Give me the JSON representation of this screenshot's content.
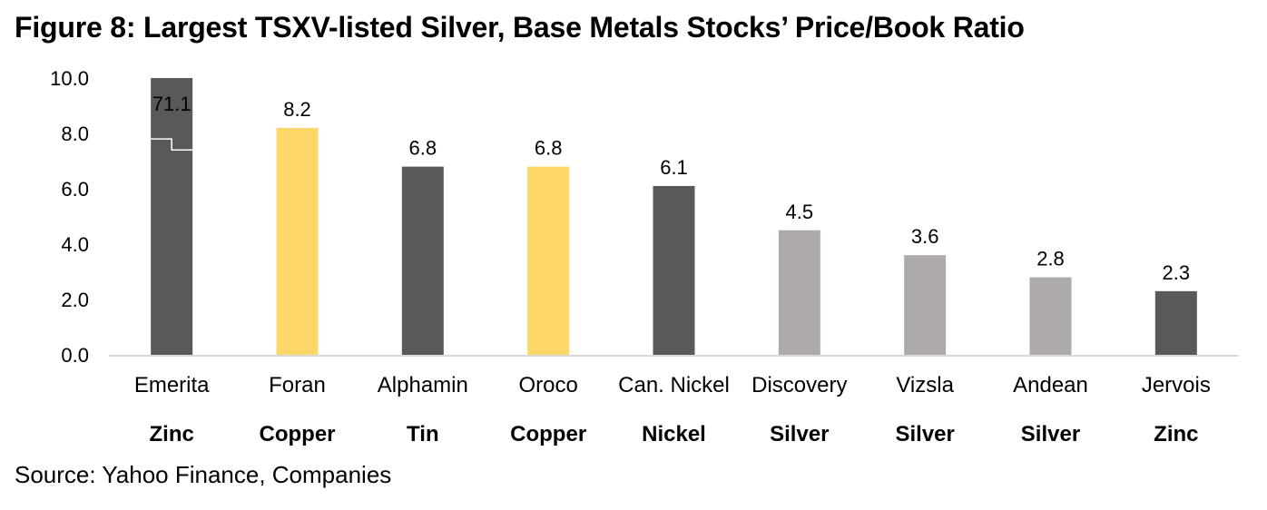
{
  "title": "Figure 8: Largest TSXV-listed Silver, Base Metals Stocks’ Price/Book Ratio",
  "source": "Source: Yahoo Finance, Companies",
  "chart_data": {
    "type": "bar",
    "title": "Figure 8: Largest TSXV-listed Silver, Base Metals Stocks’ Price/Book Ratio",
    "xlabel": "",
    "ylabel": "",
    "ylim": [
      0,
      10
    ],
    "yticks": [
      "0.0",
      "2.0",
      "4.0",
      "6.0",
      "8.0",
      "10.0"
    ],
    "grid": false,
    "legend": "none",
    "categories": [
      "Emerita",
      "Foran",
      "Alphamin",
      "Oroco",
      "Can. Nickel",
      "Discovery",
      "Vizsla",
      "Andean",
      "Jervois"
    ],
    "groups": [
      "Zinc",
      "Copper",
      "Tin",
      "Copper",
      "Nickel",
      "Silver",
      "Silver",
      "Silver",
      "Zinc"
    ],
    "values": [
      71.1,
      8.2,
      6.8,
      6.8,
      6.1,
      4.5,
      3.6,
      2.8,
      2.3
    ],
    "data_labels": [
      "71.1",
      "8.2",
      "6.8",
      "6.8",
      "6.1",
      "4.5",
      "3.6",
      "2.8",
      "2.3"
    ],
    "axis_break": {
      "category": "Emerita",
      "note": "bar truncated at axis maximum with break marker"
    },
    "colors": {
      "Zinc": "#595959",
      "Copper": "#FDD868",
      "Tin": "#595959",
      "Nickel": "#595959",
      "Silver": "#AEAAAA"
    },
    "axis_color": "#D9D9D9"
  }
}
